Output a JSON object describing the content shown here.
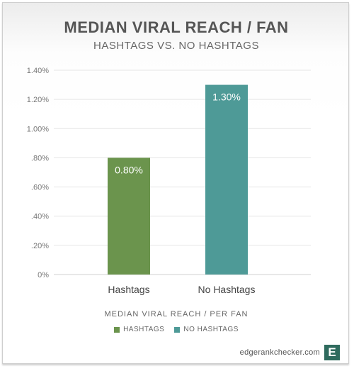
{
  "chart_data": {
    "type": "bar",
    "title": "MEDIAN VIRAL REACH / FAN",
    "subtitle": "HASHTAGS VS. NO HASHTAGS",
    "categories": [
      "Hashtags",
      "No Hashtags"
    ],
    "values": [
      0.8,
      1.3
    ],
    "value_labels": [
      "0.80%",
      "1.30%"
    ],
    "colors": [
      "#6b944d",
      "#4e9a97"
    ],
    "xlabel": "MEDIAN VIRAL REACH / PER FAN",
    "ylabel": "",
    "ylim": [
      0,
      1.4
    ],
    "yticks": [
      0,
      0.2,
      0.4,
      0.6,
      0.8,
      1.0,
      1.2,
      1.4
    ],
    "ytick_labels": [
      "0%",
      ".20%",
      ".40%",
      ".60%",
      ".80%",
      "1.00%",
      "1.20%",
      "1.40%"
    ],
    "grid": true,
    "legend": {
      "position": "bottom",
      "entries": [
        {
          "label": "HASHTAGS",
          "color": "#6b944d"
        },
        {
          "label": "NO HASHTAGS",
          "color": "#4e9a97"
        }
      ]
    }
  },
  "footer": {
    "brand": "edgerankchecker.com",
    "logo_letter": "E"
  }
}
